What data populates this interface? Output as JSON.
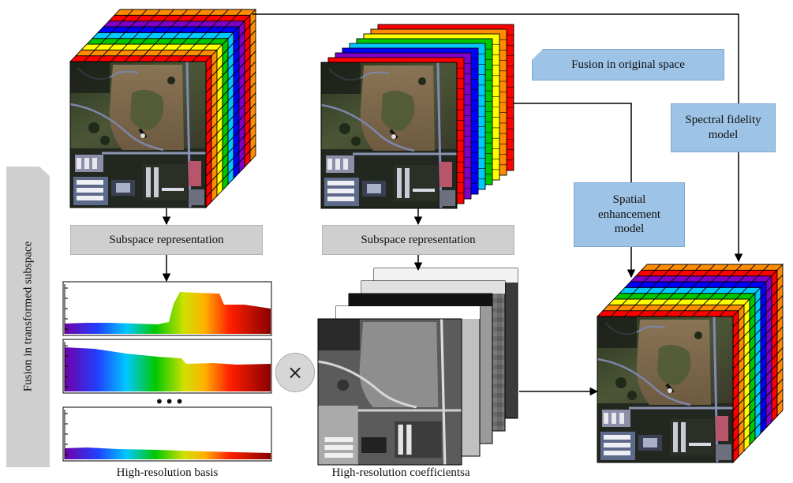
{
  "labels": {
    "subspace_left": "Subspace representation",
    "subspace_mid": "Subspace representation",
    "fusion_original": "Fusion in original space",
    "fusion_transformed": "Fusion in transformed subspace",
    "spatial_model": "Spatial enhancement model",
    "spectral_model": "Spectral fidelity model",
    "basis_caption": "High-resolution basis",
    "coeff_caption": "High-resolution coefficientsa",
    "ellipsis": "•••"
  },
  "operator_symbol": "×",
  "colors": {
    "spectrum": [
      "#ff0000",
      "#ff8c00",
      "#ffff00",
      "#00c800",
      "#00c8ff",
      "#0000ff",
      "#8000c8"
    ],
    "gray_box": "#cfcfcf",
    "blue_box": "#9dc3e6"
  },
  "icons": {
    "scene": "aerial-campus-image",
    "cube": "hyperspectral-cube",
    "operator": "multiply-circle-icon"
  }
}
